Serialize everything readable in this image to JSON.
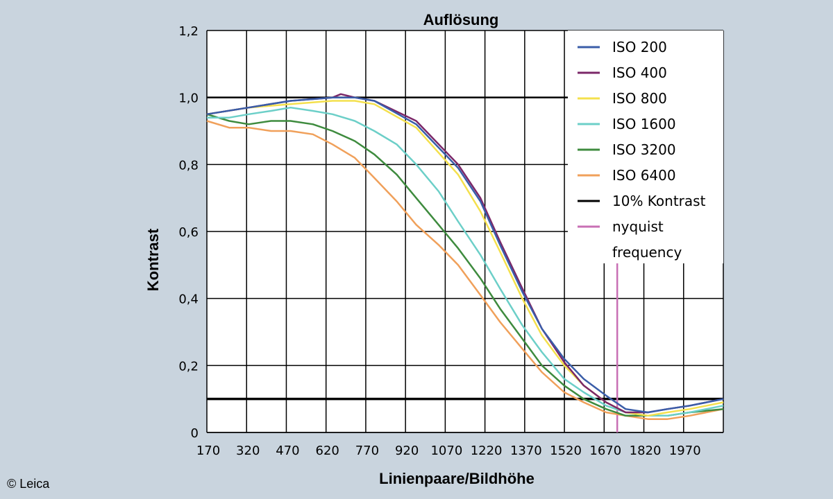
{
  "chart_data": {
    "type": "line",
    "title": "Auflösung",
    "xlabel": "Linienpaare/Bildhöhe",
    "ylabel": "Kontrast",
    "xlim": [
      170,
      2020
    ],
    "ylim": [
      0,
      1.2
    ],
    "x_ticks": [
      "170",
      "320",
      "470",
      "620",
      "770",
      "920",
      "1070",
      "1220",
      "1370",
      "1520",
      "1670",
      "1820",
      "1970"
    ],
    "y_ticks": [
      "0",
      "0,2",
      "0,4",
      "0,6",
      "0,8",
      "1,0",
      "1,2"
    ],
    "grid": true,
    "legend_position": "top-right",
    "reference_lines": [
      {
        "name": "10% Kontrast",
        "y": 0.1,
        "color": "#000000"
      },
      {
        "name": "nyquist frequency",
        "x": 1640,
        "color": "#c86fb4"
      }
    ],
    "series": [
      {
        "name": "ISO 200",
        "color": "#3a5da8",
        "x": [
          170,
          320,
          470,
          620,
          700,
          770,
          920,
          1070,
          1150,
          1220,
          1300,
          1370,
          1450,
          1520,
          1600,
          1670,
          1750,
          1820,
          1900,
          2020
        ],
        "y": [
          0.95,
          0.97,
          0.99,
          1.0,
          1.0,
          0.99,
          0.92,
          0.79,
          0.69,
          0.56,
          0.42,
          0.31,
          0.22,
          0.16,
          0.11,
          0.07,
          0.06,
          0.07,
          0.08,
          0.1
        ]
      },
      {
        "name": "ISO 400",
        "color": "#7b2768",
        "x": [
          170,
          320,
          470,
          620,
          650,
          700,
          770,
          920,
          1070,
          1150,
          1220,
          1300,
          1370,
          1450,
          1520,
          1600,
          1670,
          1750,
          1820,
          1900,
          2020
        ],
        "y": [
          0.95,
          0.97,
          0.99,
          1.0,
          1.01,
          1.0,
          0.99,
          0.93,
          0.8,
          0.7,
          0.57,
          0.43,
          0.31,
          0.21,
          0.14,
          0.09,
          0.06,
          0.06,
          0.07,
          0.08,
          0.1
        ]
      },
      {
        "name": "ISO 800",
        "color": "#f4e04d",
        "x": [
          170,
          320,
          470,
          620,
          700,
          770,
          920,
          1070,
          1150,
          1220,
          1300,
          1370,
          1450,
          1520,
          1600,
          1670,
          1750,
          1820,
          1900,
          2020
        ],
        "y": [
          0.95,
          0.97,
          0.98,
          0.99,
          0.99,
          0.98,
          0.91,
          0.77,
          0.66,
          0.54,
          0.4,
          0.29,
          0.2,
          0.14,
          0.09,
          0.06,
          0.05,
          0.06,
          0.07,
          0.09
        ]
      },
      {
        "name": "ISO 1600",
        "color": "#6ccfc8",
        "x": [
          170,
          250,
          320,
          400,
          470,
          550,
          620,
          700,
          770,
          850,
          920,
          1000,
          1070,
          1150,
          1220,
          1300,
          1370,
          1450,
          1520,
          1600,
          1670,
          1750,
          1820,
          1900,
          2020
        ],
        "y": [
          0.94,
          0.94,
          0.95,
          0.96,
          0.97,
          0.96,
          0.95,
          0.93,
          0.9,
          0.86,
          0.8,
          0.72,
          0.63,
          0.53,
          0.43,
          0.32,
          0.24,
          0.16,
          0.12,
          0.08,
          0.06,
          0.05,
          0.05,
          0.06,
          0.08
        ]
      },
      {
        "name": "ISO 3200",
        "color": "#3e8b3e",
        "x": [
          170,
          250,
          320,
          400,
          470,
          550,
          620,
          700,
          770,
          850,
          920,
          1000,
          1070,
          1150,
          1220,
          1300,
          1370,
          1450,
          1520,
          1600,
          1670,
          1750,
          1820,
          1900,
          2020
        ],
        "y": [
          0.95,
          0.93,
          0.92,
          0.93,
          0.93,
          0.92,
          0.9,
          0.87,
          0.83,
          0.77,
          0.7,
          0.62,
          0.55,
          0.46,
          0.37,
          0.28,
          0.2,
          0.14,
          0.1,
          0.07,
          0.05,
          0.05,
          0.05,
          0.06,
          0.07
        ]
      },
      {
        "name": "ISO 6400",
        "color": "#f0a05a",
        "x": [
          170,
          250,
          320,
          400,
          470,
          550,
          620,
          700,
          770,
          850,
          920,
          1000,
          1070,
          1150,
          1220,
          1300,
          1370,
          1450,
          1520,
          1600,
          1670,
          1750,
          1820,
          1900,
          2020
        ],
        "y": [
          0.93,
          0.91,
          0.91,
          0.9,
          0.9,
          0.89,
          0.86,
          0.82,
          0.76,
          0.69,
          0.62,
          0.56,
          0.5,
          0.41,
          0.33,
          0.25,
          0.18,
          0.12,
          0.09,
          0.06,
          0.05,
          0.04,
          0.04,
          0.05,
          0.07
        ]
      }
    ]
  },
  "legend": [
    {
      "label": "ISO 200",
      "color": "#3a5da8"
    },
    {
      "label": "ISO 400",
      "color": "#7b2768"
    },
    {
      "label": "ISO 800",
      "color": "#f4e04d"
    },
    {
      "label": "ISO 1600",
      "color": "#6ccfc8"
    },
    {
      "label": "ISO 3200",
      "color": "#3e8b3e"
    },
    {
      "label": "ISO 6400",
      "color": "#f0a05a"
    },
    {
      "label": "10% Kontrast",
      "color": "#000000"
    },
    {
      "label": "nyquist",
      "color": "#c86fb4"
    }
  ],
  "legend_extra": "frequency",
  "copyright": "© Leica"
}
